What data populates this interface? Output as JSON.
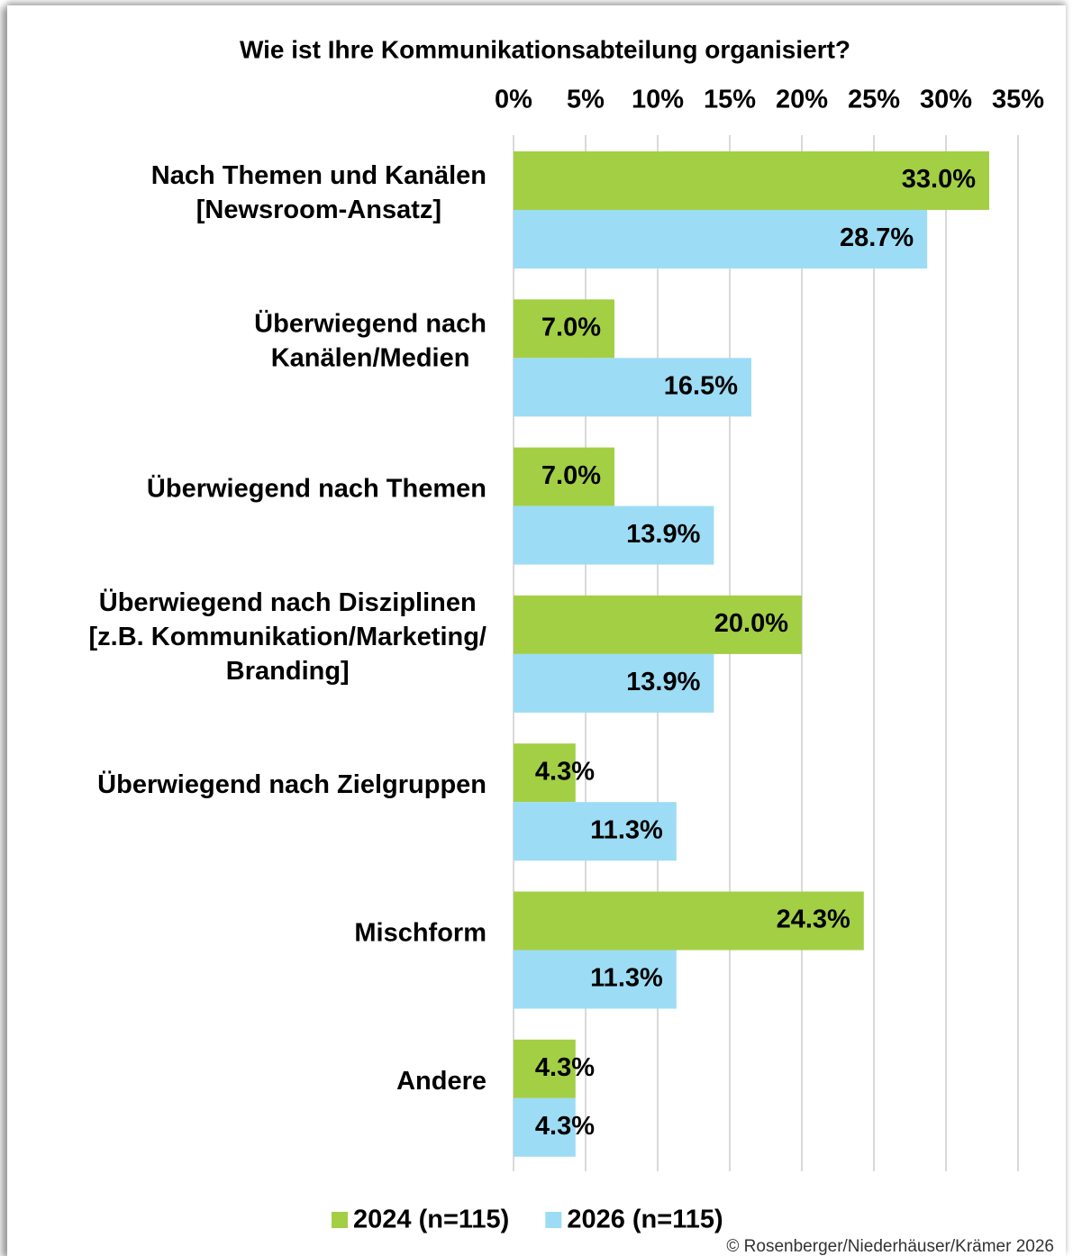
{
  "chart_data": {
    "type": "bar",
    "orientation": "horizontal",
    "title": "Wie ist Ihre Kommunikationsabteilung organisiert?",
    "categories": [
      "Nach Themen und Kanälen\n[Newsroom-Ansatz]",
      "Überwiegend nach\nKanälen/Medien",
      "Überwiegend nach Themen",
      "Überwiegend nach Disziplinen\n[z.B. Kommunikation/Marketing/\nBranding]",
      "Überwiegend nach Zielgruppen",
      "Mischform",
      "Andere"
    ],
    "series": [
      {
        "name": "2024 (n=115)",
        "color": "#a3cf45",
        "values": [
          33.0,
          7.0,
          7.0,
          20.0,
          4.3,
          24.3,
          4.3
        ],
        "value_labels": [
          "33.0%",
          "7.0%",
          "7.0%",
          "20.0%",
          "4.3%",
          "24.3%",
          "4.3%"
        ]
      },
      {
        "name": "2026 (n=115)",
        "color": "#9ddcf5",
        "values": [
          28.7,
          16.5,
          13.9,
          13.9,
          11.3,
          11.3,
          4.3
        ],
        "value_labels": [
          "28.7%",
          "16.5%",
          "13.9%",
          "13.9%",
          "11.3%",
          "11.3%",
          "4.3%"
        ]
      }
    ],
    "xlim": [
      0,
      35
    ],
    "xticks": [
      {
        "value": 0,
        "label": "0%"
      },
      {
        "value": 5,
        "label": "5%"
      },
      {
        "value": 10,
        "label": "10%"
      },
      {
        "value": 15,
        "label": "15%"
      },
      {
        "value": 20,
        "label": "20%"
      },
      {
        "value": 25,
        "label": "25%"
      },
      {
        "value": 30,
        "label": "30%"
      },
      {
        "value": 35,
        "label": "35%"
      }
    ],
    "grid": true,
    "legend": "bottom",
    "source": "© Rosenberger/Niederhäuser/Krämer 2026"
  }
}
